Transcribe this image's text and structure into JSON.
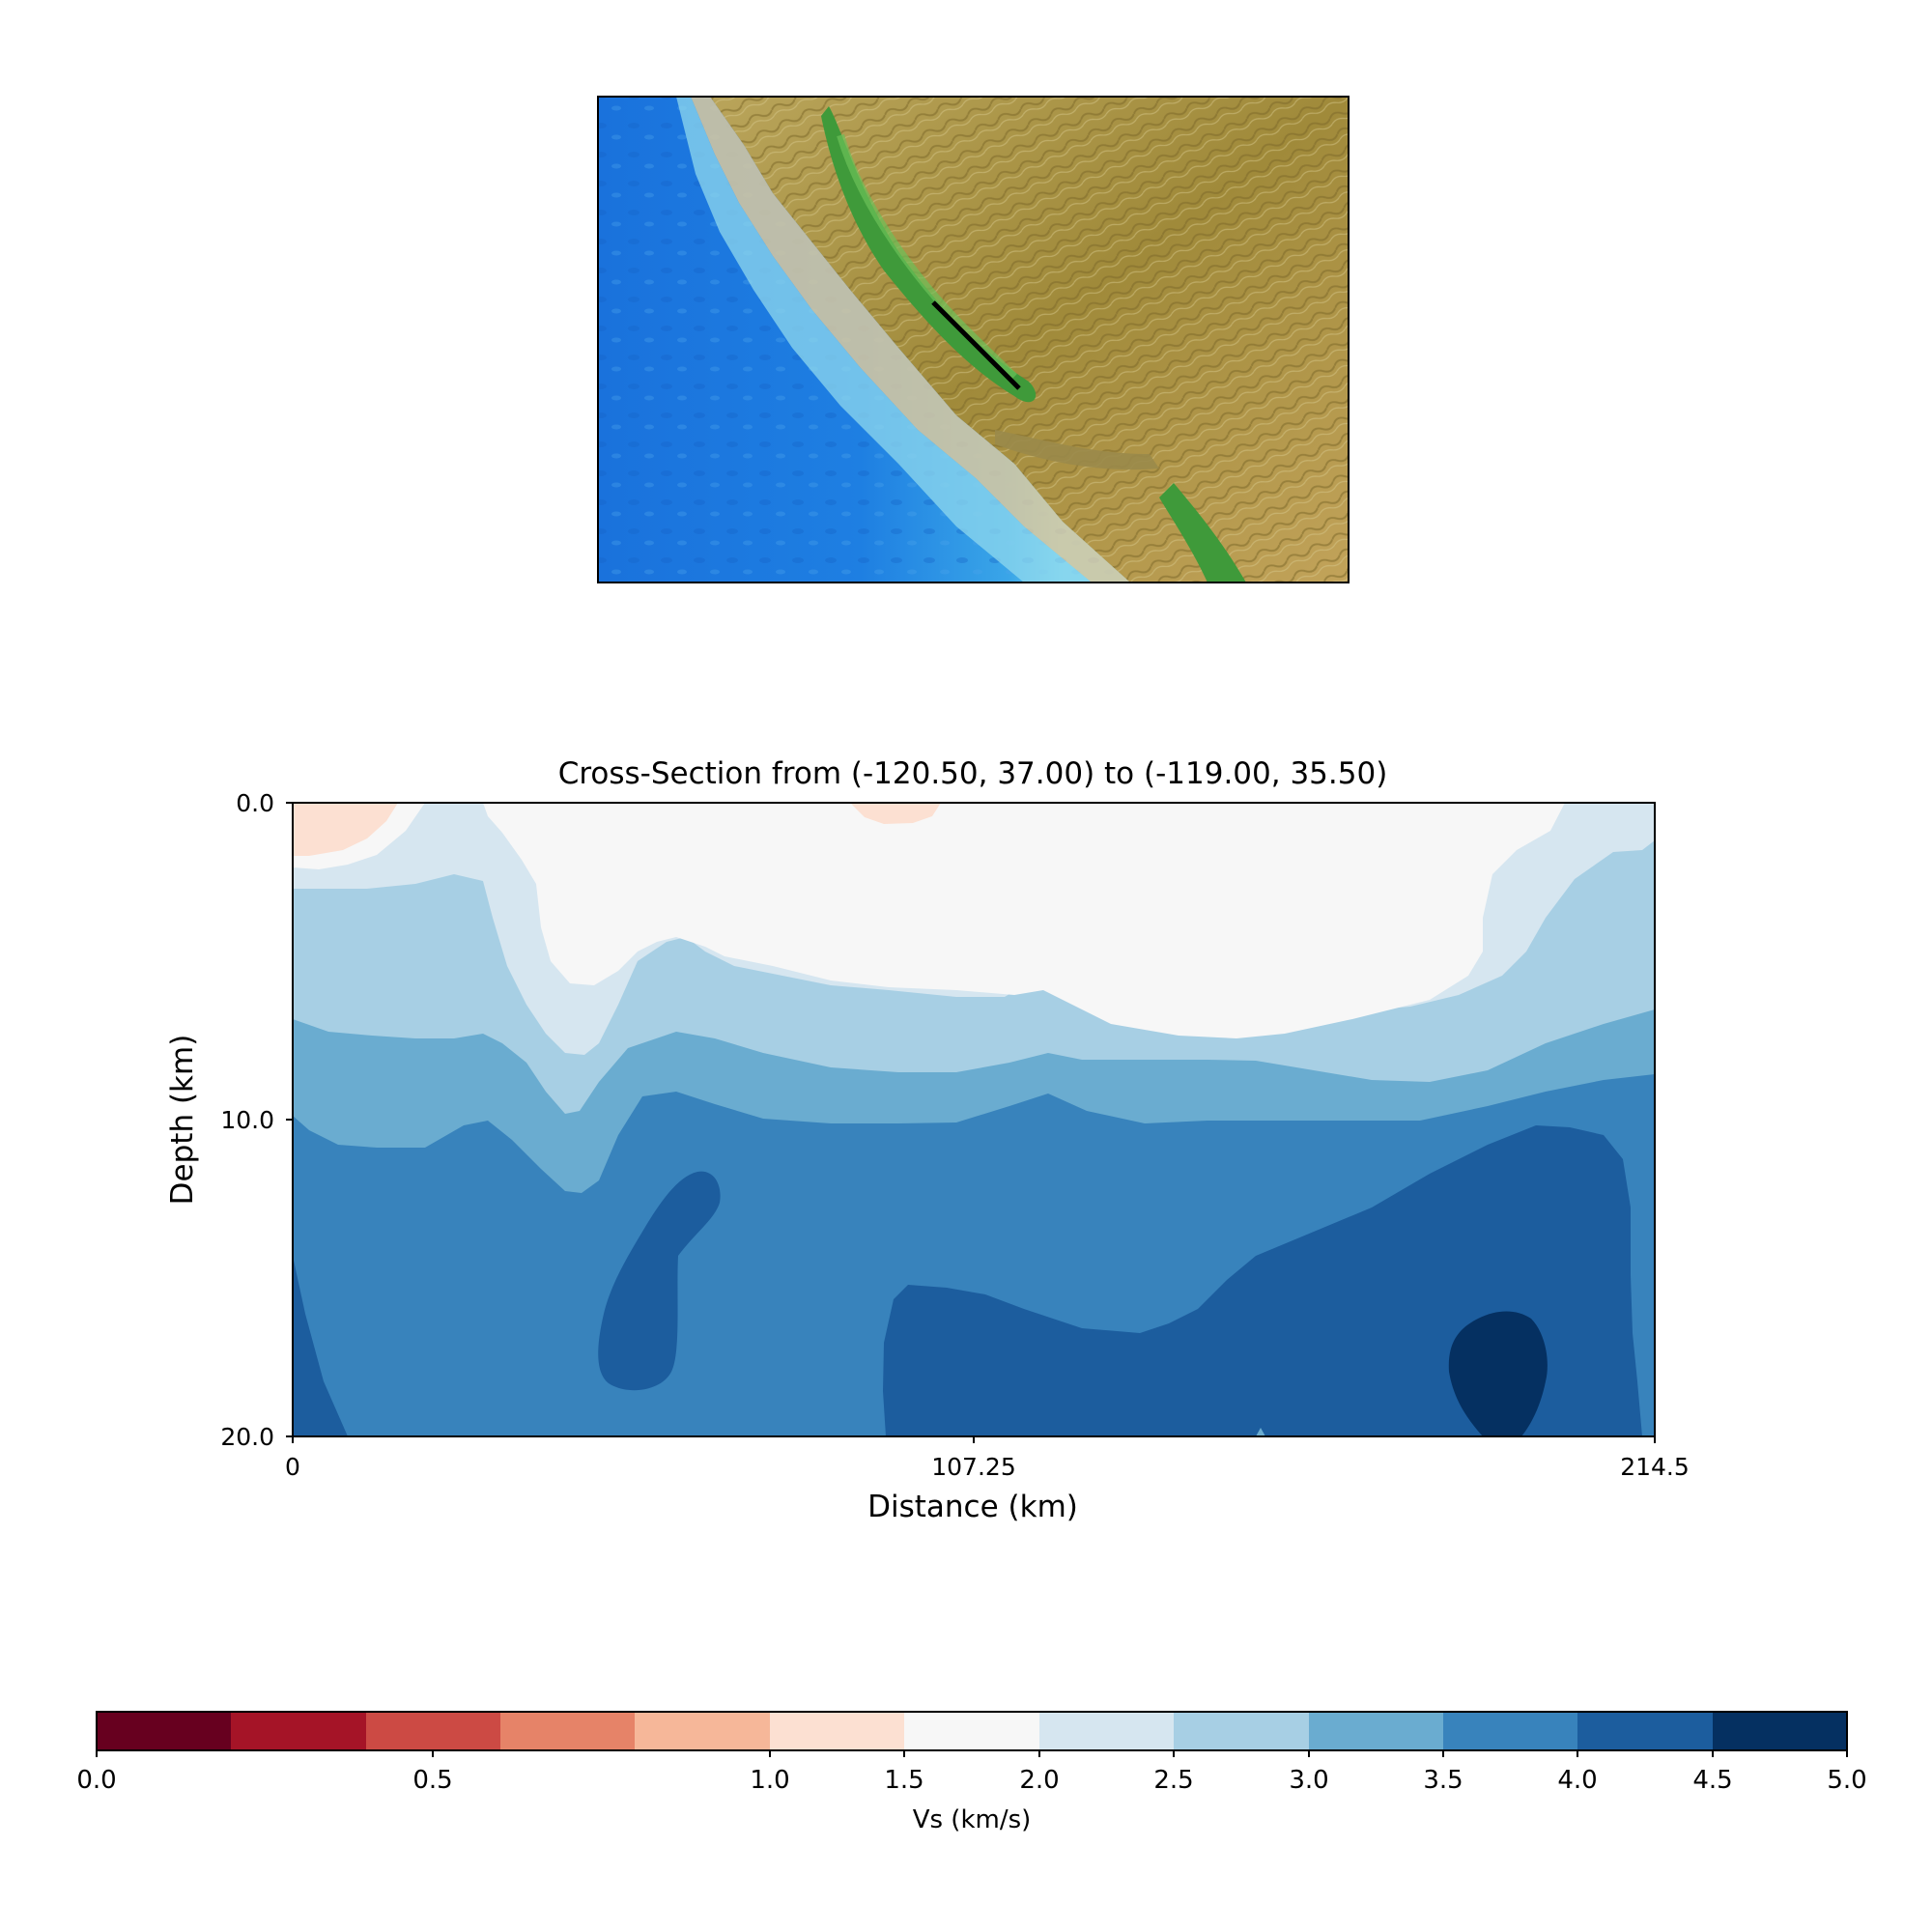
{
  "map": {
    "section_line": {
      "from": [
        -120.5,
        37.0
      ],
      "to": [
        -119.0,
        35.5
      ]
    }
  },
  "chart_data": {
    "type": "heatmap",
    "title": "Cross-Section from (-120.50, 37.00) to (-119.00, 35.50)",
    "xlabel": "Distance (km)",
    "ylabel": "Depth (km)",
    "xlim": [
      0,
      214.5
    ],
    "ylim": [
      20.0,
      0.0
    ],
    "x_ticks": [
      "0",
      "107.25",
      "214.5"
    ],
    "y_ticks": [
      "0.0",
      "10.0",
      "20.0"
    ],
    "contour_levels": [
      0.0,
      0.5,
      1.0,
      1.5,
      2.0,
      2.5,
      3.0,
      3.5,
      4.0,
      4.5,
      5.0
    ],
    "regions": [
      {
        "vs_range": "1.5-2.0",
        "location": "surface near x 0-16 km and near x 88-101 km"
      },
      {
        "vs_range": "2.0-2.5",
        "location": "upper crust, x ~20-190 km, depth 0-7 km"
      },
      {
        "vs_range": "2.5-3.0",
        "location": "band between ~2 and ~8.5 km depth"
      },
      {
        "vs_range": "3.0-3.5",
        "location": "band between ~3 and ~10.5 km depth"
      },
      {
        "vs_range": "3.5-4.0",
        "location": "mid crust below ~9 km depth"
      },
      {
        "vs_range": "4.0-4.5",
        "location": "lower crust, x ~49-66 km and x ~94-210 km"
      },
      {
        "vs_range": "4.5-5.0",
        "location": "x ~182-198 km, depth ~16-20 km"
      }
    ],
    "colorbar": {
      "label": "Vs (km/s)",
      "range": [
        0.0,
        5.0
      ],
      "tick_labels": [
        "0.0",
        "0.5",
        "1.0",
        "1.5",
        "2.0",
        "2.5",
        "3.0",
        "3.5",
        "4.0",
        "4.5",
        "5.0"
      ],
      "colors": [
        "#67001f",
        "#a51427",
        "#cc4a44",
        "#e68368",
        "#f6b799",
        "#fce0d2",
        "#f7f7f7",
        "#d6e6f0",
        "#a7cfe4",
        "#6aacd0",
        "#3883bc",
        "#1c5d9e",
        "#053061"
      ]
    }
  }
}
